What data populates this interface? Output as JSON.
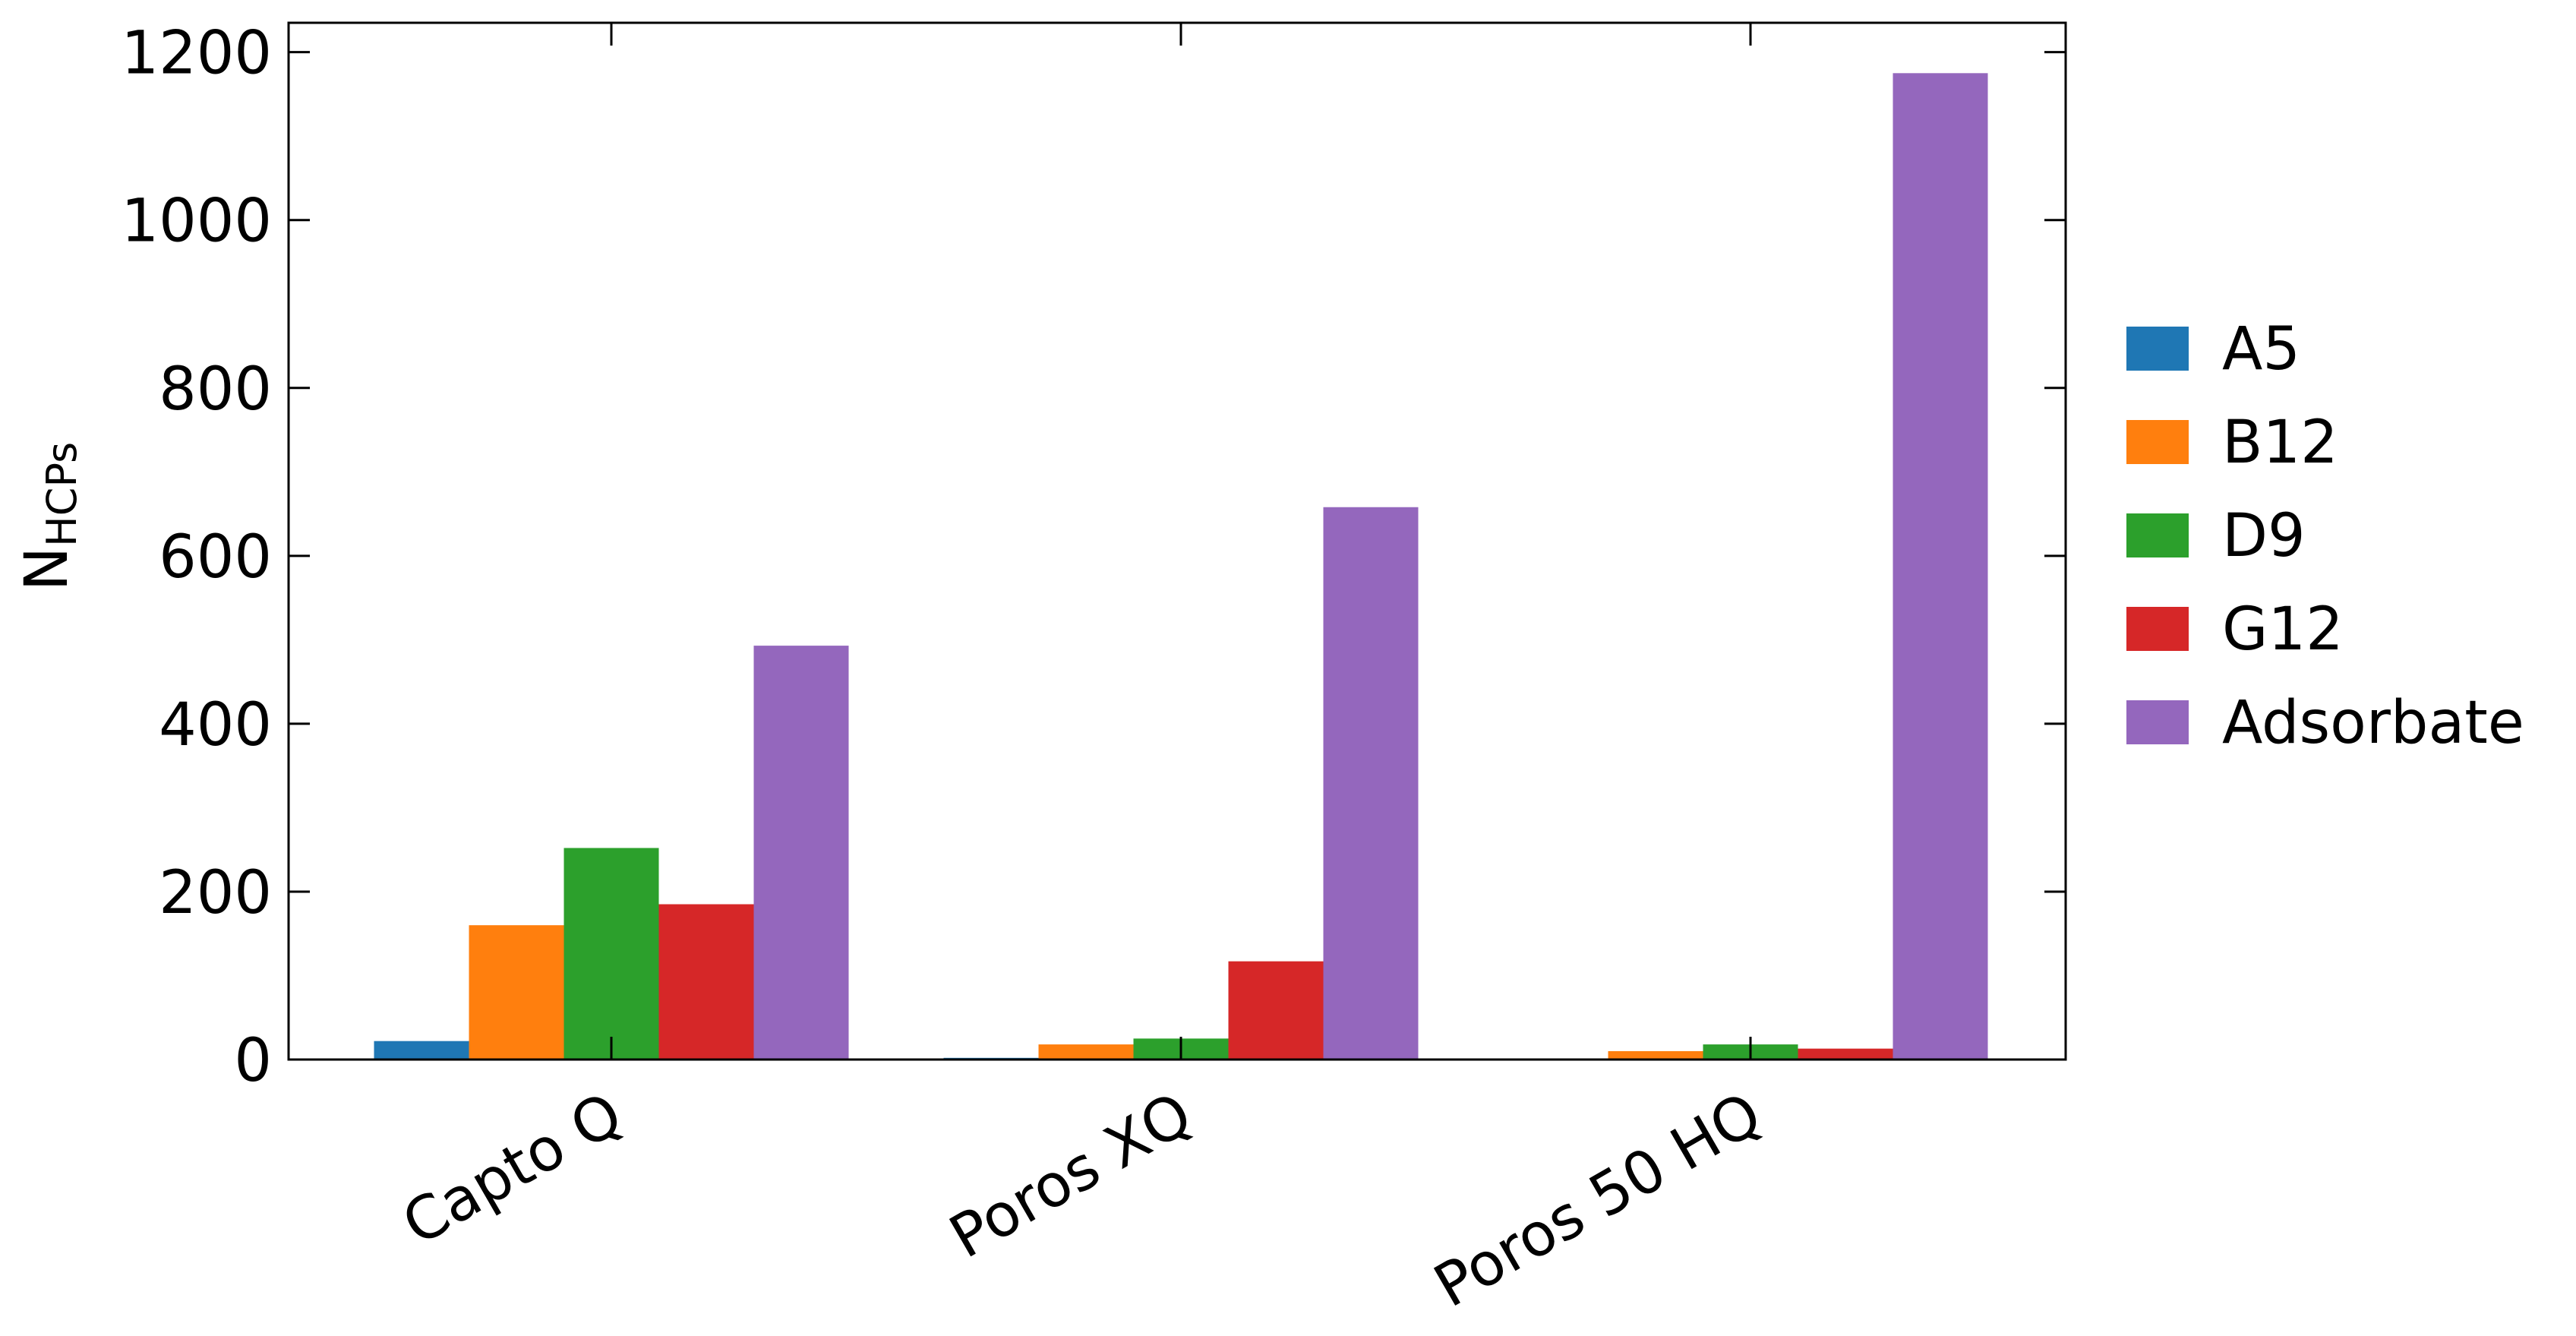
{
  "chart_data": {
    "type": "bar",
    "title": "",
    "xlabel": "",
    "ylabel": "N",
    "ylabel_subscript": "HCPs",
    "categories": [
      "Capto Q",
      "Poros XQ",
      "Poros 50 HQ"
    ],
    "series": [
      {
        "name": "A5",
        "color": "#1f77b4",
        "values": [
          22,
          2,
          1
        ]
      },
      {
        "name": "B12",
        "color": "#ff7f0e",
        "values": [
          160,
          18,
          10
        ]
      },
      {
        "name": "D9",
        "color": "#2ca02c",
        "values": [
          252,
          25,
          18
        ]
      },
      {
        "name": "G12",
        "color": "#d62728",
        "values": [
          185,
          117,
          13
        ]
      },
      {
        "name": "Adsorbate",
        "color": "#9467bd",
        "values": [
          493,
          658,
          1175
        ]
      }
    ],
    "ylim": [
      0,
      1235
    ],
    "yticks": [
      0,
      200,
      400,
      600,
      800,
      1000,
      1200
    ],
    "grid": false,
    "legend_position": "right"
  }
}
